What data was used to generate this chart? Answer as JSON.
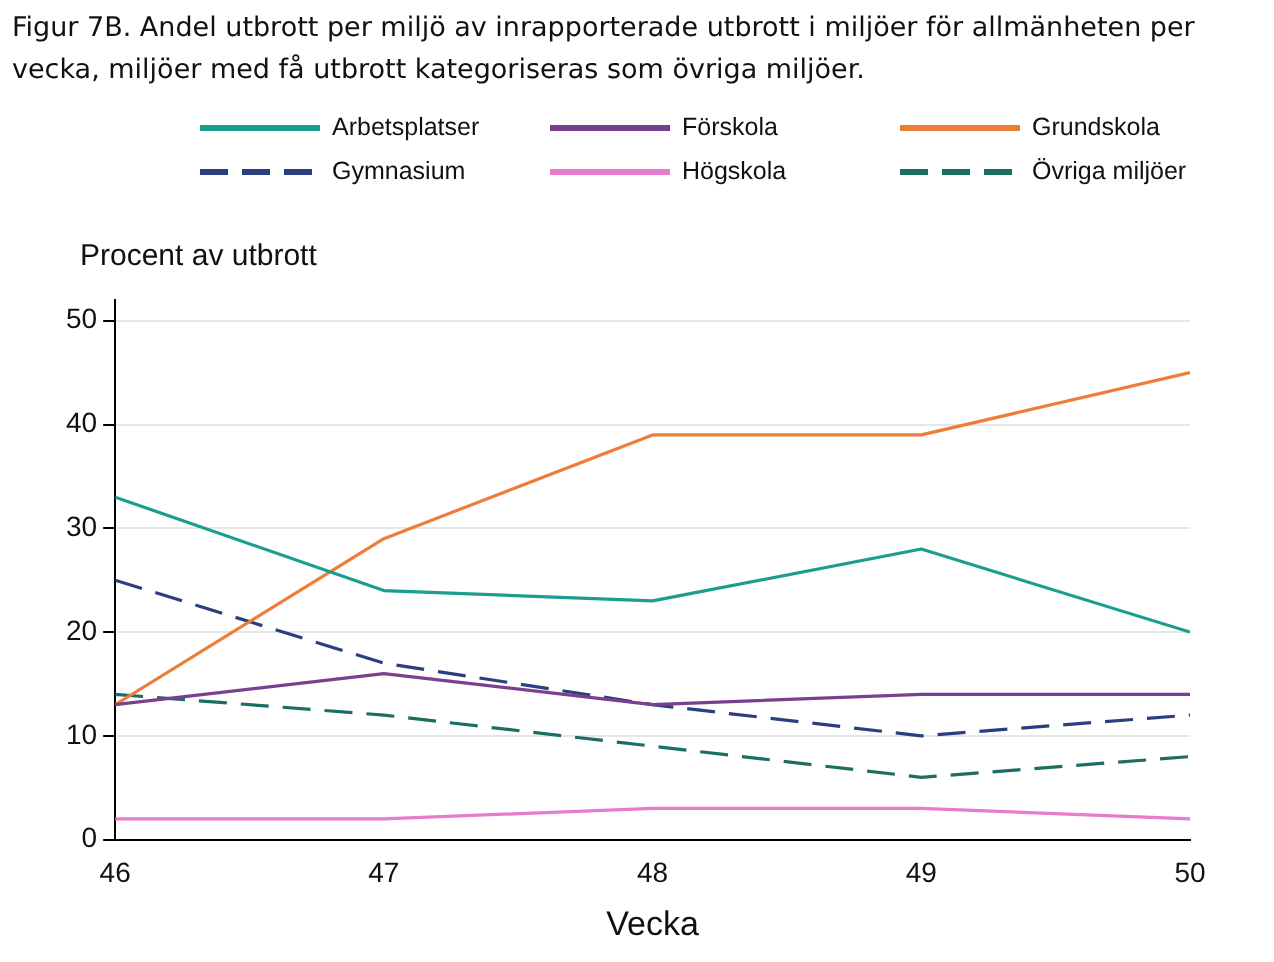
{
  "chart_data": {
    "type": "line",
    "title": "Figur 7B. Andel utbrott per miljö av inrapporterade utbrott i miljöer för allmänheten per vecka, miljöer med få utbrott kategoriseras som övriga miljöer.",
    "xlabel": "Vecka",
    "ylabel": "Procent av utbrott",
    "x": [
      46,
      47,
      48,
      49,
      50
    ],
    "xlim": [
      46,
      50
    ],
    "xticks": [
      46,
      47,
      48,
      49,
      50
    ],
    "ylim": [
      0,
      52
    ],
    "yticks": [
      0,
      10,
      20,
      30,
      40,
      50
    ],
    "grid": "y",
    "legend": "top",
    "marker": "none",
    "series": [
      {
        "name": "Arbetsplatser",
        "color": "#1a9e8f",
        "line_style": "solid",
        "values": [
          33,
          24,
          23,
          28,
          20
        ]
      },
      {
        "name": "Förskola",
        "color": "#7b3f8f",
        "line_style": "solid",
        "values": [
          13,
          16,
          13,
          14,
          14
        ]
      },
      {
        "name": "Grundskola",
        "color": "#ee7d3a",
        "line_style": "solid",
        "values": [
          13,
          29,
          39,
          39,
          45
        ]
      },
      {
        "name": "Gymnasium",
        "color": "#2a3f7e",
        "line_style": "dashed",
        "values": [
          25,
          17,
          13,
          10,
          12
        ]
      },
      {
        "name": "Högskola",
        "color": "#e87ad0",
        "line_style": "solid",
        "values": [
          2,
          2,
          3,
          3,
          2
        ]
      },
      {
        "name": "Övriga miljöer",
        "color": "#1a6e62",
        "line_style": "dashed",
        "values": [
          14,
          12,
          9,
          6,
          8
        ]
      }
    ]
  }
}
